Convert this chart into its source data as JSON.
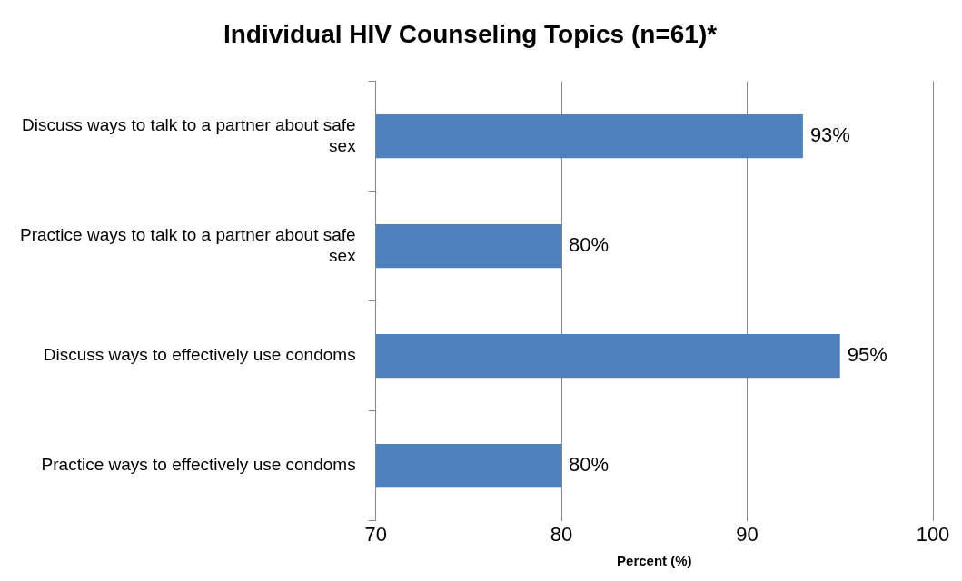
{
  "chart_data": {
    "type": "bar",
    "title": "Individual HIV Counseling Topics (n=61)*",
    "xlabel": "Percent (%)",
    "orientation": "horizontal",
    "categories": [
      "Discuss ways to talk to a partner about safe sex",
      "Practice ways to talk to a partner about safe sex",
      "Discuss ways to effectively use condoms",
      "Practice ways to effectively use condoms"
    ],
    "values": [
      93,
      80,
      95,
      80
    ],
    "color": "#4f81bd",
    "value_labels": [
      "93%",
      "80%",
      "95%",
      "80%"
    ],
    "xlim": [
      70,
      100
    ],
    "xticks": [
      70,
      80,
      90,
      100
    ],
    "grid": "x",
    "legend": false
  }
}
